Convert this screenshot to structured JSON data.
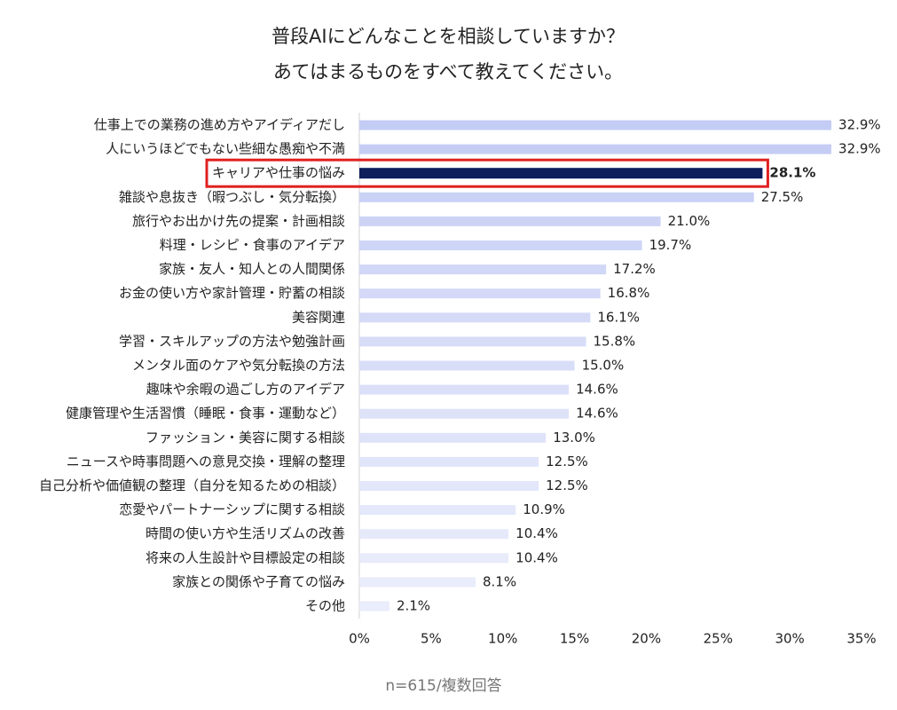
{
  "chart_data": {
    "type": "barh",
    "title": [
      "普段AIにどんなことを相談していますか？",
      "あてはまるものをすべて教えてください。"
    ],
    "footnote": "n=615/複数回答",
    "categories": [
      "仕事上での業務の進め方やアイディアだし",
      "人にいうほどでもない些細な愚痴や不満",
      "キャリアや仕事の悩み",
      "雑談や息抜き（暇つぶし・気分転換）",
      "旅行やお出かけ先の提案・計画相談",
      "料理・レシピ・食事のアイデア",
      "家族・友人・知人との人間関係",
      "お金の使い方や家計管理・貯蓄の相談",
      "美容関連",
      "学習・スキルアップの方法や勉強計画",
      "メンタル面のケアや気分転換の方法",
      "趣味や余暇の過ごし方のアイデア",
      "健康管理や生活習慣（睡眠・食事・運動など）",
      "ファッション・美容に関する相談",
      "ニュースや時事問題への意見交換・理解の整理",
      "自己分析や価値観の整理（自分を知るための相談）",
      "恋愛やパートナーシップに関する相談",
      "時間の使い方や生活リズムの改善",
      "将来の人生設計や目標設定の相談",
      "家族との関係や子育ての悩み",
      "その他"
    ],
    "values": [
      32.9,
      32.9,
      28.1,
      27.5,
      21.0,
      19.7,
      17.2,
      16.8,
      16.1,
      15.8,
      15.0,
      14.6,
      14.6,
      13.0,
      12.5,
      12.5,
      10.9,
      10.4,
      10.4,
      8.1,
      2.1
    ],
    "value_labels": [
      "32.9%",
      "32.9%",
      "28.1%",
      "27.5%",
      "21.0%",
      "19.7%",
      "17.2%",
      "16.8%",
      "16.1%",
      "15.8%",
      "15.0%",
      "14.6%",
      "14.6%",
      "13.0%",
      "12.5%",
      "12.5%",
      "10.9%",
      "10.4%",
      "10.4%",
      "8.1%",
      "2.1%"
    ],
    "colors": [
      "#c3ccf4",
      "#c5cdf4",
      "#0e1d5c",
      "#c9d1f5",
      "#ccd3f5",
      "#ced5f6",
      "#d1d7f6",
      "#d3d9f7",
      "#d5dbf7",
      "#d7ddf7",
      "#d9def8",
      "#dbe0f8",
      "#dde2f8",
      "#dfe3f9",
      "#e1e5f9",
      "#e3e7f9",
      "#e4e8fa",
      "#e6e9fa",
      "#e7ebfa",
      "#e9ecfb",
      "#eaedfb"
    ],
    "highlight_index": 2,
    "highlight_color": "#e02020",
    "xlim": [
      0,
      35
    ],
    "xticks": [
      {
        "value": 0,
        "label": "0%"
      },
      {
        "value": 5,
        "label": "5%"
      },
      {
        "value": 10,
        "label": "10%"
      },
      {
        "value": 15,
        "label": "15%"
      },
      {
        "value": 20,
        "label": "20%"
      },
      {
        "value": 25,
        "label": "25%"
      },
      {
        "value": 30,
        "label": "30%"
      },
      {
        "value": 35,
        "label": "35%"
      }
    ]
  }
}
